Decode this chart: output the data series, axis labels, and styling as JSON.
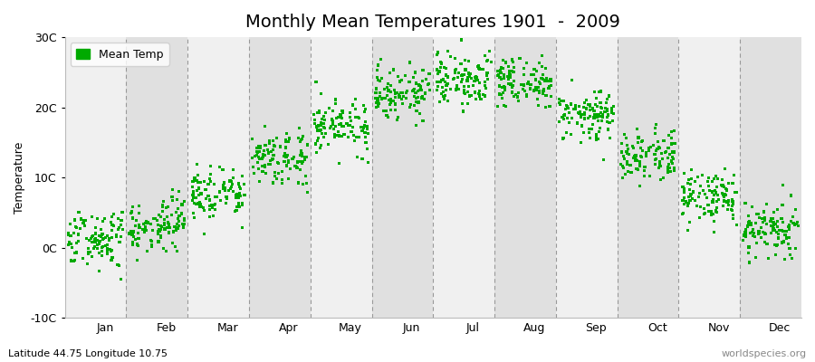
{
  "title": "Monthly Mean Temperatures 1901  -  2009",
  "ylabel": "Temperature",
  "bottom_left_label": "Latitude 44.75 Longitude 10.75",
  "bottom_right_label": "worldspecies.org",
  "ylim": [
    -10,
    30
  ],
  "yticks": [
    -10,
    0,
    10,
    20,
    30
  ],
  "ytick_labels": [
    "-10C",
    "0C",
    "10C",
    "20C",
    "30C"
  ],
  "months": [
    "Jan",
    "Feb",
    "Mar",
    "Apr",
    "May",
    "Jun",
    "Jul",
    "Aug",
    "Sep",
    "Oct",
    "Nov",
    "Dec"
  ],
  "month_mean_temps": [
    1.2,
    3.0,
    7.5,
    12.5,
    17.5,
    22.0,
    24.0,
    23.5,
    19.0,
    13.0,
    7.0,
    2.5
  ],
  "month_std_temps": [
    2.2,
    2.0,
    1.8,
    1.8,
    1.8,
    1.8,
    1.8,
    1.8,
    1.8,
    1.8,
    1.8,
    2.0
  ],
  "n_years": 109,
  "dot_color": "#00AA00",
  "dot_size": 5,
  "band_color_light": "#F0F0F0",
  "band_color_dark": "#E0E0E0",
  "dashed_line_color": "#999999",
  "title_fontsize": 14,
  "label_fontsize": 9,
  "tick_fontsize": 9,
  "legend_label": "Mean Temp",
  "seed": 1234
}
